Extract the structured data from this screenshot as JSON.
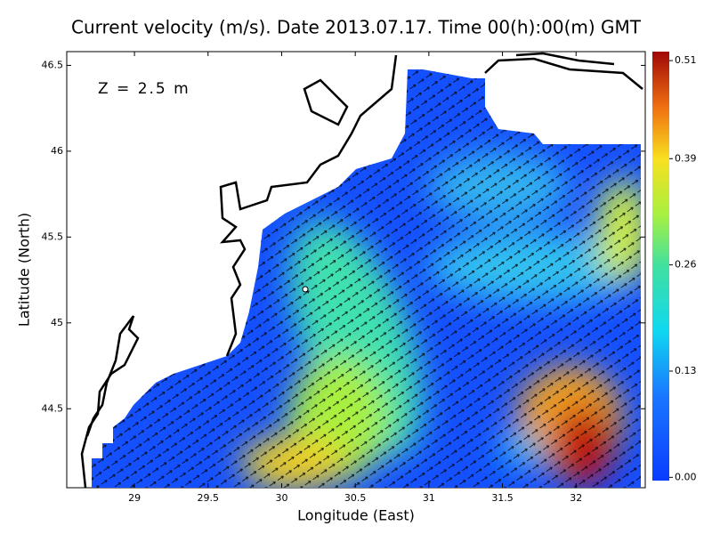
{
  "map": {
    "title": "Current velocity (m/s). Date 2013.07.17. Time 00(h):00(m) GMT",
    "annotation": "Z = 2.5 m",
    "x_label": "Longitude (East)",
    "y_label": "Latitude (North)",
    "xlim": [
      28.54,
      32.47
    ],
    "ylim": [
      44.04,
      46.58
    ],
    "xticks": [
      29,
      29.5,
      30,
      30.5,
      31,
      31.5,
      32
    ],
    "yticks": [
      44.5,
      45,
      45.5,
      46,
      46.5
    ],
    "colorbar": {
      "clim": [
        -0.004,
        0.521
      ],
      "ticks": [
        {
          "value": 0,
          "label": "0.00"
        },
        0.13,
        0.26,
        0.39,
        0.51
      ]
    }
  }
}
